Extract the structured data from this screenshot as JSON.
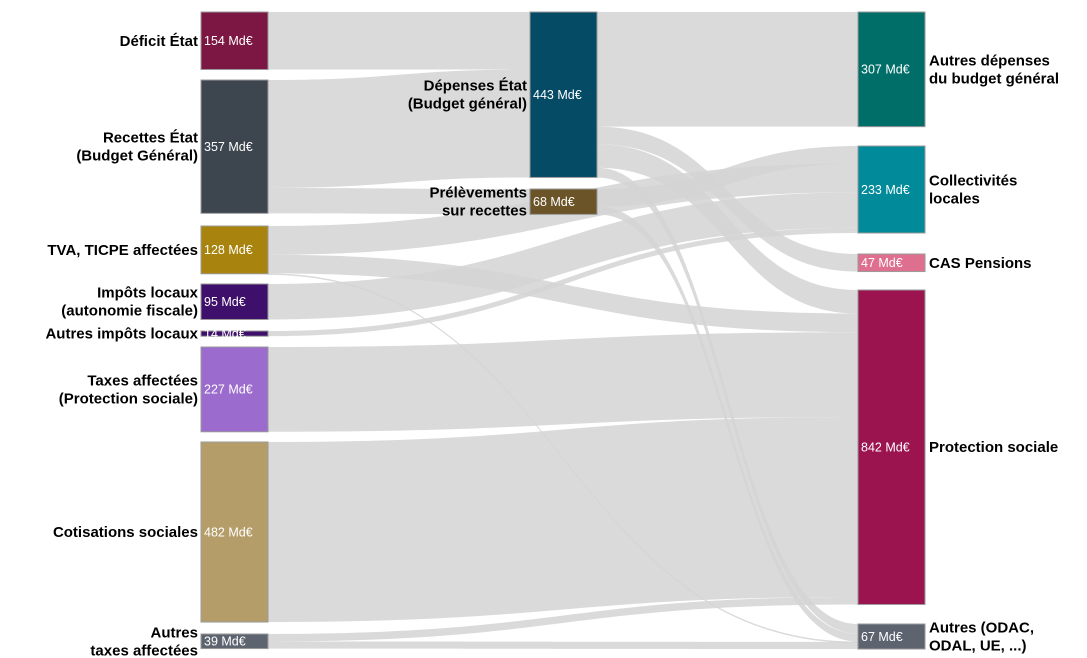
{
  "nodes": [
    {
      "id": "deficit",
      "lines": [
        "Déficit État"
      ],
      "value_label": "154 Md€",
      "value": 154,
      "color": "#7b1742",
      "col": 0
    },
    {
      "id": "recettes",
      "lines": [
        "Recettes État",
        "(Budget Général)"
      ],
      "value_label": "357 Md€",
      "value": 357,
      "color": "#3d454f",
      "col": 0
    },
    {
      "id": "tva",
      "lines": [
        "TVA, TICPE affectées"
      ],
      "value_label": "128 Md€",
      "value": 128,
      "color": "#a8840e",
      "col": 0
    },
    {
      "id": "impots_locaux",
      "lines": [
        "Impôts locaux",
        "(autonomie fiscale)"
      ],
      "value_label": "95 Md€",
      "value": 95,
      "color": "#3e0f6b",
      "col": 0
    },
    {
      "id": "autres_impots",
      "lines": [
        "Autres impôts locaux"
      ],
      "value_label": "14 Md€",
      "value": 14,
      "color": "#3e0f6b",
      "col": 0
    },
    {
      "id": "taxes_protection",
      "lines": [
        "Taxes affectées",
        "(Protection sociale)"
      ],
      "value_label": "227 Md€",
      "value": 227,
      "color": "#9b6bcd",
      "col": 0
    },
    {
      "id": "cotisations",
      "lines": [
        "Cotisations sociales"
      ],
      "value_label": "482 Md€",
      "value": 482,
      "color": "#b59d69",
      "col": 0
    },
    {
      "id": "autres_taxes",
      "lines": [
        "Autres",
        "taxes affectées"
      ],
      "value_label": "39 Md€",
      "value": 39,
      "color": "#5d6470",
      "col": 0
    },
    {
      "id": "depenses_etat",
      "lines": [
        "Dépenses État",
        "(Budget général)"
      ],
      "value_label": "443 Md€",
      "value": 443,
      "color": "#064b66",
      "col": 1
    },
    {
      "id": "prelevements",
      "lines": [
        "Prélèvements",
        "sur recettes"
      ],
      "value_label": "68 Md€",
      "value": 68,
      "color": "#6a5428",
      "col": 1
    },
    {
      "id": "autres_depenses",
      "lines": [
        "Autres dépenses",
        "du budget général"
      ],
      "value_label": "307 Md€",
      "value": 307,
      "color": "#006e68",
      "col": 2
    },
    {
      "id": "collectivites",
      "lines": [
        "Collectivités",
        "locales"
      ],
      "value_label": "233 Md€",
      "value": 233,
      "color": "#008a9a",
      "col": 2
    },
    {
      "id": "cas_pensions",
      "lines": [
        "CAS Pensions"
      ],
      "value_label": "47 Md€",
      "value": 47,
      "color": "#de6f8f",
      "col": 2
    },
    {
      "id": "protection_sociale",
      "lines": [
        "Protection sociale"
      ],
      "value_label": "842 Md€",
      "value": 842,
      "color": "#9b1450",
      "col": 2
    },
    {
      "id": "autres_odac",
      "lines": [
        "Autres (ODAC,",
        "ODAL, UE, ...)"
      ],
      "value_label": "67 Md€",
      "value": 67,
      "color": "#5d6470",
      "col": 2
    }
  ],
  "links": [
    {
      "source": "deficit",
      "target": "depenses_etat",
      "value": 154
    },
    {
      "source": "recettes",
      "target": "depenses_etat",
      "value": 289
    },
    {
      "source": "recettes",
      "target": "prelevements",
      "value": 68
    },
    {
      "source": "depenses_etat",
      "target": "autres_depenses",
      "value": 307
    },
    {
      "source": "depenses_etat",
      "target": "cas_pensions",
      "value": 47
    },
    {
      "source": "depenses_etat",
      "target": "protection_sociale",
      "value": 63
    },
    {
      "source": "depenses_etat",
      "target": "autres_odac",
      "value": 26
    },
    {
      "source": "prelevements",
      "target": "collectivites",
      "value": 47
    },
    {
      "source": "prelevements",
      "target": "autres_odac",
      "value": 21
    },
    {
      "source": "tva",
      "target": "collectivites",
      "value": 77
    },
    {
      "source": "tva",
      "target": "protection_sociale",
      "value": 50
    },
    {
      "source": "tva",
      "target": "autres_odac",
      "value": 1
    },
    {
      "source": "impots_locaux",
      "target": "collectivites",
      "value": 95
    },
    {
      "source": "autres_impots",
      "target": "collectivites",
      "value": 14
    },
    {
      "source": "taxes_protection",
      "target": "protection_sociale",
      "value": 227
    },
    {
      "source": "cotisations",
      "target": "protection_sociale",
      "value": 482
    },
    {
      "source": "autres_taxes",
      "target": "protection_sociale",
      "value": 20
    },
    {
      "source": "autres_taxes",
      "target": "autres_odac",
      "value": 19
    }
  ]
}
